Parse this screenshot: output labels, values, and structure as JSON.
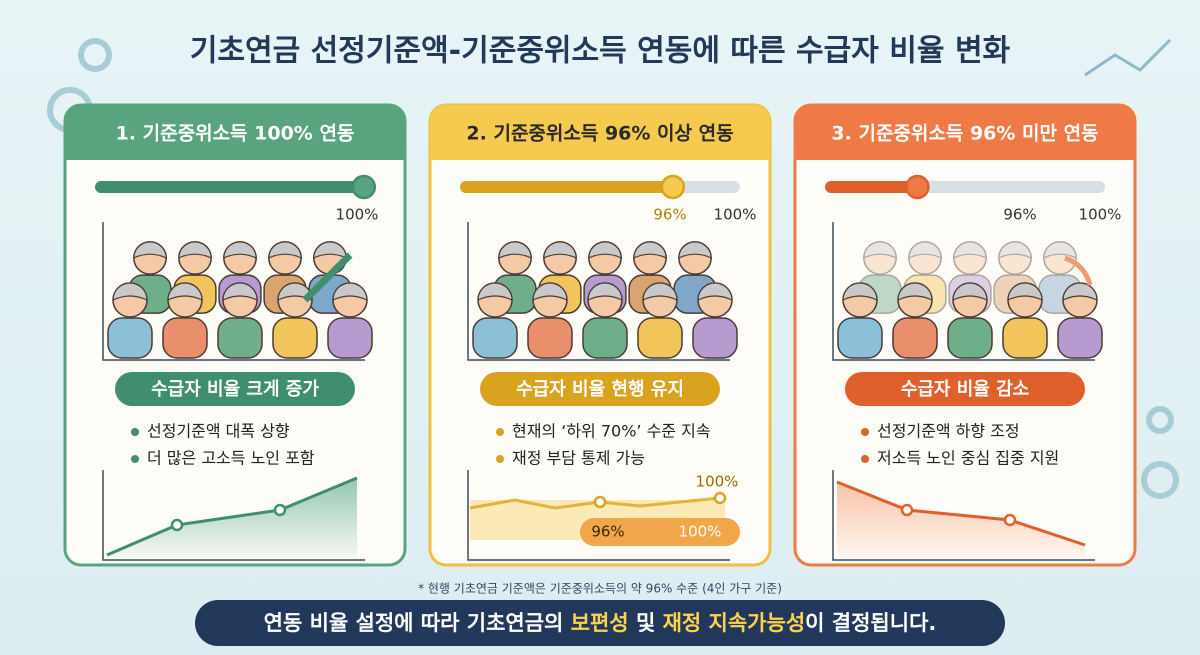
{
  "title": "기초연금 선정기준액-기준중위소득 연동에 따른 수급자 비율 변화",
  "cards": [
    {
      "header": "1. 기준중위소득 100% 연동",
      "scale_labels": [
        "100%"
      ],
      "badge": "수급자 비율 크게 증가",
      "bullets": [
        "선정기준액 대폭 상향",
        "더 많은 고소득 노인 포함"
      ]
    },
    {
      "header": "2. 기준중위소득 96% 이상 연동",
      "scale_labels": [
        "96%",
        "100%"
      ],
      "badge": "수급자 비율 현행 유지",
      "bullets": [
        "현재의 ‘하위 70%’ 수준 지속",
        "재정 부담 통제 가능"
      ],
      "chart_labels": [
        "100%",
        "96%",
        "100%"
      ]
    },
    {
      "header": "3. 기준중위소득 96% 미만 연동",
      "scale_labels": [
        "96%",
        "100%"
      ],
      "badge": "수급자 비율 감소",
      "bullets": [
        "선정기준액 하향 조정",
        "저소득 노인 중심 집중 지원"
      ]
    }
  ],
  "footnote": "* 현행 기초연금 기준액은 기준중위소득의 약 96% 수준 (4인 가구 기준)",
  "banner": {
    "parts": [
      "연동 비율 설정에 따라 기초연금의 ",
      "보편성",
      " 및 ",
      "재정 지속가능성",
      "이 결정됩니다."
    ]
  }
}
